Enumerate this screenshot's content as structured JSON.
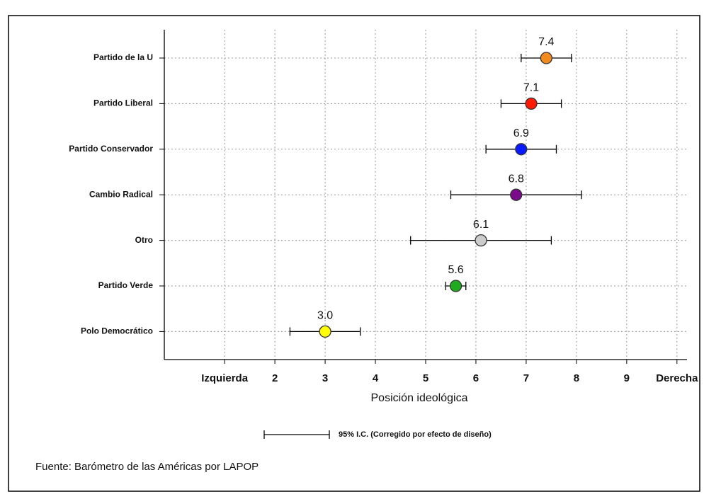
{
  "chart_data": {
    "type": "dot-errorbar",
    "x_label": "Posición ideológica",
    "categories": [
      "Partido de la U",
      "Partido Liberal",
      "Partido Conservador",
      "Cambio Radical",
      "Otro",
      "Partido Verde",
      "Polo Democrático"
    ],
    "values": [
      7.4,
      7.1,
      6.9,
      6.8,
      6.1,
      5.6,
      3.0
    ],
    "value_labels": [
      "7.4",
      "7.1",
      "6.9",
      "6.8",
      "6.1",
      "5.6",
      "3.0"
    ],
    "errors": [
      0.5,
      0.6,
      0.7,
      1.3,
      1.4,
      0.2,
      0.7
    ],
    "colors": [
      "#f28a1e",
      "#ff1a00",
      "#0a1aff",
      "#7a0a8a",
      "#cccccc",
      "#1faa1f",
      "#ffff00"
    ],
    "xlim": [
      -0.2,
      10.2
    ],
    "xticks": [
      {
        "value": 1,
        "label": "Izquierda"
      },
      2,
      3,
      4,
      5,
      6,
      7,
      8,
      9,
      {
        "value": 10,
        "label": "Derecha"
      }
    ],
    "grid": true,
    "legend_label": "95% I.C. (Corregido por efecto de diseño)",
    "source": "Fuente: Barómetro de las Américas por LAPOP"
  }
}
